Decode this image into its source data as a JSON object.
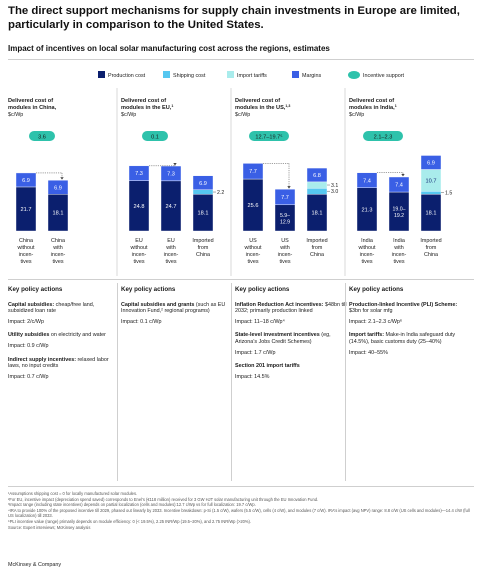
{
  "title": "The direct support mechanisms for supply chain investments in Europe are limited, particularly in comparison to the United States.",
  "subtitle": "Impact of incentives on local solar manufacturing cost across the regions, estimates",
  "legend": [
    {
      "label": "Production cost",
      "color": "#0b1f6e",
      "shape": "square"
    },
    {
      "label": "Shipping cost",
      "color": "#56c7f0",
      "shape": "square"
    },
    {
      "label": "Import tariffs",
      "color": "#a9ecec",
      "shape": "square"
    },
    {
      "label": "Margins",
      "color": "#3a5fe5",
      "shape": "square"
    },
    {
      "label": "Incentive support",
      "color": "#2ec2ab",
      "shape": "ellipse"
    }
  ],
  "colors": {
    "production": "#0b1f6e",
    "shipping": "#56c7f0",
    "tariffs": "#a9ecec",
    "margins": "#3a5fe5",
    "incentive": "#2ec2ab"
  },
  "chart_data": {
    "type": "bar",
    "stacked": true,
    "unit": "$c/Wp",
    "panels": [
      {
        "heading": "Delivered cost of modules in China,",
        "heading_sup": "",
        "unit": "$c/Wp",
        "incentive_label": "3.6",
        "bars": [
          {
            "label": "China without incen- tives",
            "segments": [
              {
                "type": "production",
                "value": 21.7
              },
              {
                "type": "margins",
                "value": 6.9
              }
            ],
            "labels": [
              "21.7",
              "6.9"
            ]
          },
          {
            "label": "China with incen- tives",
            "segments": [
              {
                "type": "production",
                "value": 18.1
              },
              {
                "type": "margins",
                "value": 6.9
              }
            ],
            "labels": [
              "18.1",
              "6.9"
            ]
          }
        ]
      },
      {
        "heading": "Delivered cost of modules in the EU,",
        "heading_sup": "1",
        "unit": "$c/Wp",
        "incentive_label": "0.1",
        "bars": [
          {
            "label": "EU without incen- tives",
            "segments": [
              {
                "type": "production",
                "value": 24.8
              },
              {
                "type": "margins",
                "value": 7.3
              }
            ],
            "labels": [
              "24.8",
              "7.3"
            ]
          },
          {
            "label": "EU with incen- tives",
            "segments": [
              {
                "type": "production",
                "value": 24.7
              },
              {
                "type": "margins",
                "value": 7.3
              }
            ],
            "labels": [
              "24.7",
              "7.3"
            ]
          },
          {
            "label": "Imported from China",
            "segments": [
              {
                "type": "production",
                "value": 18.1
              },
              {
                "type": "shipping",
                "value": 2.2
              },
              {
                "type": "margins",
                "value": 6.9
              }
            ],
            "labels": [
              "18.1",
              "2.2",
              "6.9"
            ]
          }
        ]
      },
      {
        "heading": "Delivered cost of modules in the US,",
        "heading_sup": "1,3",
        "unit": "$c/Wp",
        "incentive_label": "12.7–19.7⁵",
        "bars": [
          {
            "label": "US without incen- tives",
            "segments": [
              {
                "type": "production",
                "value": 25.6
              },
              {
                "type": "margins",
                "value": 7.7
              }
            ],
            "labels": [
              "25.6",
              "7.7"
            ]
          },
          {
            "label": "US with incen- tives",
            "segments": [
              {
                "type": "production",
                "value": 12.9
              },
              {
                "type": "margins",
                "value": 7.7
              }
            ],
            "labels": [
              "5.9– 12.9",
              "7.7"
            ]
          },
          {
            "label": "Imported from China",
            "segments": [
              {
                "type": "production",
                "value": 18.1
              },
              {
                "type": "shipping",
                "value": 3.0
              },
              {
                "type": "tariffs",
                "value": 3.1
              },
              {
                "type": "margins",
                "value": 6.8
              }
            ],
            "labels": [
              "18.1",
              "3.0",
              "3.1",
              "6.8"
            ]
          }
        ]
      },
      {
        "heading": "Delivered cost of modules in India,",
        "heading_sup": "1",
        "unit": "$c/Wp",
        "incentive_label": "2.1–2.3",
        "bars": [
          {
            "label": "India without incen- tives",
            "segments": [
              {
                "type": "production",
                "value": 21.3
              },
              {
                "type": "margins",
                "value": 7.4
              }
            ],
            "labels": [
              "21.3",
              "7.4"
            ]
          },
          {
            "label": "India with incen- tives",
            "segments": [
              {
                "type": "production",
                "value": 19.2
              },
              {
                "type": "margins",
                "value": 7.4
              }
            ],
            "labels": [
              "19.0– 19.2",
              "7.4"
            ]
          },
          {
            "label": "Imported from China",
            "segments": [
              {
                "type": "production",
                "value": 18.1
              },
              {
                "type": "shipping",
                "value": 1.5
              },
              {
                "type": "tariffs",
                "value": 10.7
              },
              {
                "type": "margins",
                "value": 6.9
              }
            ],
            "labels": [
              "18.1",
              "1.5",
              "10.7",
              "6.9"
            ]
          }
        ]
      }
    ]
  },
  "policy_columns": [
    {
      "heading": "Key policy actions",
      "policies": [
        {
          "name": "Capital subsidies:",
          "detail": " cheap/free land, subsidized loan rate",
          "impact": "Impact: 2/c/Wp"
        },
        {
          "name": "Utility subsidies",
          "detail": " on electricity and water",
          "impact": "Impact: 0.9 c/Wp"
        },
        {
          "name": "Indirect supply incentives:",
          "detail": " relaxed labor laws, no input credits",
          "impact": "Impact: 0.7 c/Wp"
        }
      ]
    },
    {
      "heading": "Key policy actions",
      "policies": [
        {
          "name": "Capital subsidies and grants",
          "detail": " (such as EU Innovation Fund,² regional programs)",
          "impact": "Impact: 0.1 c/Wp"
        }
      ]
    },
    {
      "heading": "Key policy actions",
      "policies": [
        {
          "name": "Inflation Reduction Act incentives:",
          "detail": " $48bn till 2032; primarily production linked",
          "impact": "Impact: 11–18 c/Wp⁴"
        },
        {
          "name": "State-level investment incentives",
          "detail": " (eg, Arizona’s Jobs Credit Schemes)",
          "impact": "Impact: 1.7 c/Wp"
        },
        {
          "name": "Section 201 import tariffs",
          "detail": "",
          "impact": "Impact: 14.5%"
        }
      ]
    },
    {
      "heading": "Key policy actions",
      "policies": [
        {
          "name": "Production-linked Incentive (PLI) Scheme:",
          "detail": " $3bn for solar mfg",
          "impact": "Impact: 2.1–2.3 c/Wp⁶"
        },
        {
          "name": "Import tariffs:",
          "detail": " Make-in India safeguard duty (14.5%), basic customs duty (25–40%)",
          "impact": "Impact: 40–55%"
        }
      ]
    }
  ],
  "footnotes": [
    "¹Assumptions shipping cost = 0 for locally manufactured solar modules.",
    "²For EU, incentive impact (depreciation spend saved) corresponds to Enel’s (€118 million) received for 3 GW HJT solar manufacturing unit through the EU Innovation Fund.",
    "³Impact range (including state incentives) depends on partial localization (cells and modules):12.7 c/Wp vs for full localization: 19.7 c/Wp.",
    "⁴IRA to provide 100% of the proposed incentive till 2029, phased out linearly by 2033. Incentive breakdown: p-Si (1.5 c/W), wafers (5.5 c/W), cells (4 c/W), and modules (7 c/W). IRA’s impact (avg NPV) range: 8.8 c/W (US cells and modules)—14.4 c/W (full US localization) till 2033.",
    "⁵PLI incentive value (range) primarily depends on module efficiency: 0 (< 19.5%), 2.25 INR/Wp (19.5–20%), and 2.75 INR/Wp (>20%).",
    " Source: Expert interviews; McKinsey analysis"
  ],
  "brand": "McKinsey & Company"
}
